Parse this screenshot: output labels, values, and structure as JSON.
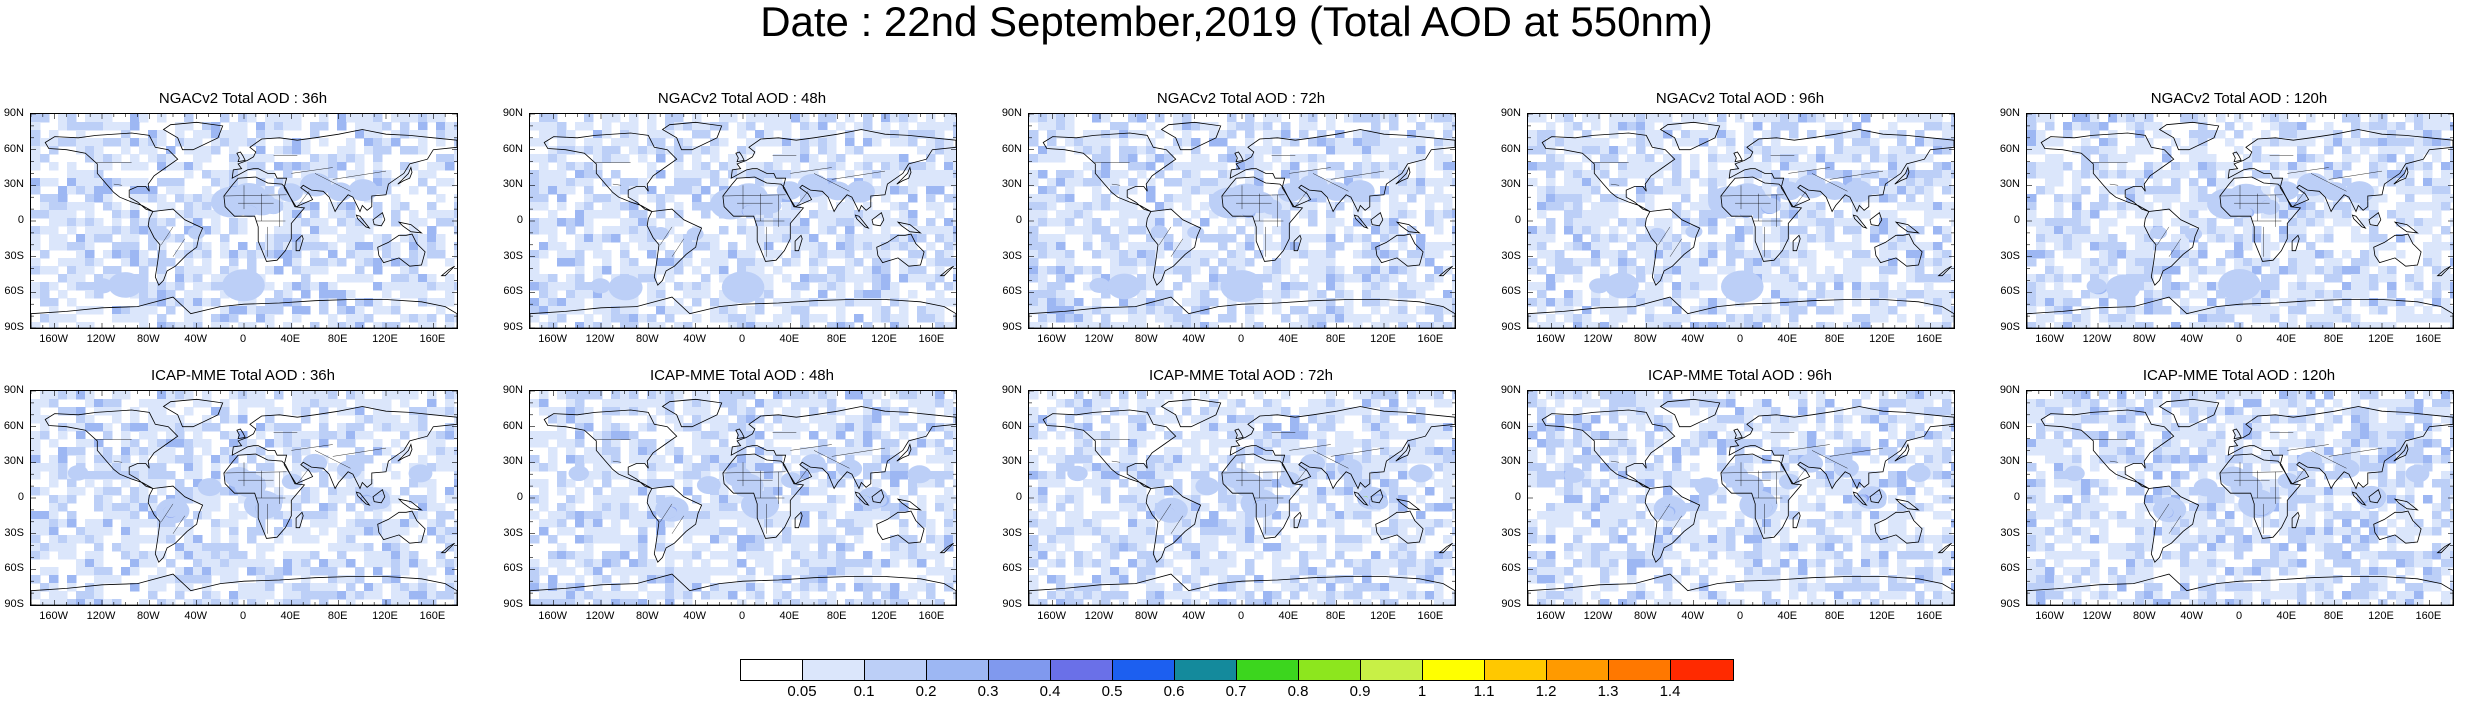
{
  "title": "Date : 22nd September,2019 (Total AOD at 550nm)",
  "lat_labels": [
    "90N",
    "60N",
    "30N",
    "0",
    "30S",
    "60S",
    "90S"
  ],
  "lon_labels": [
    "160W",
    "120W",
    "80W",
    "40W",
    "0",
    "40E",
    "80E",
    "120E",
    "160E"
  ],
  "panels": [
    {
      "title": "NGACv2 Total AOD : 36h",
      "model": "NGACv2",
      "lead": "36h"
    },
    {
      "title": "NGACv2 Total AOD : 48h",
      "model": "NGACv2",
      "lead": "48h"
    },
    {
      "title": "NGACv2 Total AOD : 72h",
      "model": "NGACv2",
      "lead": "72h"
    },
    {
      "title": "NGACv2 Total AOD : 96h",
      "model": "NGACv2",
      "lead": "96h"
    },
    {
      "title": "NGACv2 Total AOD : 120h",
      "model": "NGACv2",
      "lead": "120h"
    },
    {
      "title": "ICAP-MME Total AOD : 36h",
      "model": "ICAP-MME",
      "lead": "36h"
    },
    {
      "title": "ICAP-MME Total AOD : 48h",
      "model": "ICAP-MME",
      "lead": "48h"
    },
    {
      "title": "ICAP-MME Total AOD : 72h",
      "model": "ICAP-MME",
      "lead": "72h"
    },
    {
      "title": "ICAP-MME Total AOD : 96h",
      "model": "ICAP-MME",
      "lead": "96h"
    },
    {
      "title": "ICAP-MME Total AOD : 120h",
      "model": "ICAP-MME",
      "lead": "120h"
    }
  ],
  "colorbar": {
    "labels": [
      "0.05",
      "0.1",
      "0.2",
      "0.3",
      "0.4",
      "0.5",
      "0.6",
      "0.7",
      "0.8",
      "0.9",
      "1",
      "1.1",
      "1.2",
      "1.3",
      "1.4"
    ],
    "colors": [
      "#ffffff",
      "#dbe6fb",
      "#bccff7",
      "#9db7f3",
      "#8099ee",
      "#6a70e8",
      "#1c5ff0",
      "#148a9c",
      "#3cd61e",
      "#8de61e",
      "#c8f046",
      "#ffff00",
      "#ffc800",
      "#ff9a00",
      "#ff7800",
      "#ff2a00"
    ]
  }
}
